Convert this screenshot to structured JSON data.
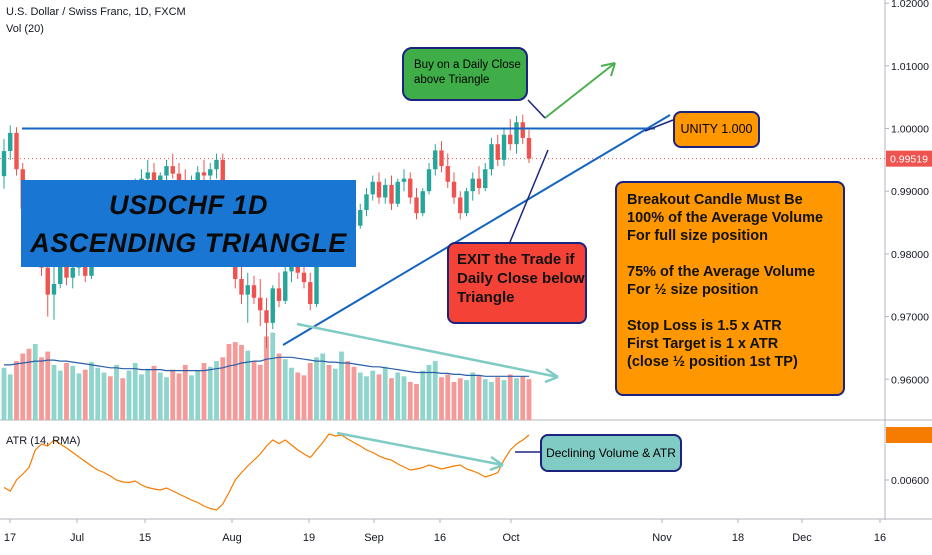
{
  "header": {
    "title": "U.S. Dollar / Swiss Franc, 1D, FXCM",
    "volume_label": "Vol (20)",
    "atr_label": "ATR (14, RMA)"
  },
  "notes": {
    "buy": [
      "Buy on a Daily Close",
      "above Triangle"
    ],
    "unity": "UNITY 1.000",
    "title": [
      "USDCHF 1D",
      "ASCENDING TRIANGLE"
    ],
    "exit": [
      "EXIT the Trade if",
      "Daily Close below",
      "Triangle"
    ],
    "rules": [
      [
        "Breakout Candle Must Be",
        "100% of the Average Volume",
        "For full size position"
      ],
      [
        "75% of the Average Volume",
        "For ½ size position"
      ],
      [
        "Stop Loss is 1.5 x ATR",
        "First Target is 1 x ATR",
        "(close ½ position 1st TP)"
      ]
    ],
    "declining": "Declining Volume & ATR"
  },
  "colors": {
    "up": "#26a69a",
    "down": "#ef5350",
    "vol_up": "#8fd5cc",
    "vol_down": "#f49a98",
    "trendline": "#1565c0",
    "vol_ma": "#2a5fa8",
    "atr": "#f57c00",
    "arrow_green": "#4caf50",
    "arrow_teal": "#80cbc4",
    "price_tag": "#ef5350"
  },
  "chart_data": {
    "type": "candlestick",
    "price_axis": {
      "ticks": [
        "1.02000",
        "1.01000",
        "1.00000",
        "0.99000",
        "0.98000",
        "0.97000",
        "0.96000"
      ],
      "last_price": "0.99519",
      "range": [
        0.9535,
        1.0205
      ]
    },
    "atr_axis": {
      "ticks": [
        "0.00700",
        "0.00600"
      ],
      "range": [
        0.0053,
        0.0072
      ]
    },
    "x_axis": {
      "ticks": [
        "17",
        "Jul",
        "15",
        "Aug",
        "19",
        "Sep",
        "16",
        "Oct",
        "Nov",
        "18",
        "Dec",
        "16"
      ]
    },
    "resistance": 1.0,
    "candles": [
      [
        0.9924,
        0.9983,
        0.9904,
        0.9964
      ],
      [
        0.9964,
        1.0005,
        0.995,
        0.9993
      ],
      [
        0.9993,
        1.0002,
        0.9925,
        0.9935
      ],
      [
        0.9935,
        0.9945,
        0.986,
        0.9872
      ],
      [
        0.9872,
        0.99,
        0.9805,
        0.982
      ],
      [
        0.982,
        0.987,
        0.979,
        0.9853
      ],
      [
        0.9853,
        0.988,
        0.9765,
        0.9778
      ],
      [
        0.9778,
        0.979,
        0.97,
        0.9735
      ],
      [
        0.9735,
        0.978,
        0.9695,
        0.9752
      ],
      [
        0.9752,
        0.98,
        0.9745,
        0.979
      ],
      [
        0.979,
        0.9805,
        0.975,
        0.9762
      ],
      [
        0.9762,
        0.98,
        0.9745,
        0.9778
      ],
      [
        0.9778,
        0.981,
        0.9765,
        0.9795
      ],
      [
        0.9795,
        0.98,
        0.9755,
        0.9765
      ],
      [
        0.9765,
        0.9825,
        0.976,
        0.982
      ],
      [
        0.982,
        0.9855,
        0.981,
        0.9845
      ],
      [
        0.9845,
        0.987,
        0.983,
        0.986
      ],
      [
        0.986,
        0.988,
        0.9845,
        0.985
      ],
      [
        0.985,
        0.989,
        0.984,
        0.9882
      ],
      [
        0.9882,
        0.99,
        0.986,
        0.987
      ],
      [
        0.987,
        0.9905,
        0.986,
        0.9895
      ],
      [
        0.9895,
        0.992,
        0.988,
        0.991
      ],
      [
        0.991,
        0.9935,
        0.9895,
        0.992
      ],
      [
        0.992,
        0.995,
        0.9905,
        0.993
      ],
      [
        0.993,
        0.9945,
        0.99,
        0.9912
      ],
      [
        0.9912,
        0.993,
        0.989,
        0.9925
      ],
      [
        0.9925,
        0.995,
        0.991,
        0.994
      ],
      [
        0.994,
        0.996,
        0.992,
        0.9928
      ],
      [
        0.9928,
        0.9945,
        0.9905,
        0.9915
      ],
      [
        0.9915,
        0.9935,
        0.989,
        0.99
      ],
      [
        0.99,
        0.9925,
        0.988,
        0.9915
      ],
      [
        0.9915,
        0.994,
        0.99,
        0.993
      ],
      [
        0.993,
        0.995,
        0.9915,
        0.9925
      ],
      [
        0.9925,
        0.9945,
        0.9905,
        0.9935
      ],
      [
        0.9935,
        0.996,
        0.992,
        0.995
      ],
      [
        0.995,
        0.996,
        0.99,
        0.991
      ],
      [
        0.991,
        0.9918,
        0.984,
        0.985
      ],
      [
        0.985,
        0.9855,
        0.9745,
        0.976
      ],
      [
        0.976,
        0.979,
        0.972,
        0.9735
      ],
      [
        0.9735,
        0.977,
        0.969,
        0.975
      ],
      [
        0.975,
        0.9765,
        0.972,
        0.973
      ],
      [
        0.973,
        0.976,
        0.9685,
        0.971
      ],
      [
        0.971,
        0.973,
        0.965,
        0.969
      ],
      [
        0.969,
        0.975,
        0.968,
        0.9745
      ],
      [
        0.9745,
        0.977,
        0.9715,
        0.9725
      ],
      [
        0.9725,
        0.978,
        0.972,
        0.9772
      ],
      [
        0.9772,
        0.98,
        0.9755,
        0.979
      ],
      [
        0.979,
        0.981,
        0.976,
        0.977
      ],
      [
        0.977,
        0.98,
        0.9745,
        0.9755
      ],
      [
        0.9755,
        0.977,
        0.971,
        0.972
      ],
      [
        0.972,
        0.98,
        0.9715,
        0.9795
      ],
      [
        0.9795,
        0.985,
        0.9785,
        0.984
      ],
      [
        0.984,
        0.986,
        0.981,
        0.982
      ],
      [
        0.982,
        0.988,
        0.9815,
        0.987
      ],
      [
        0.987,
        0.99,
        0.985,
        0.989
      ],
      [
        0.989,
        0.991,
        0.9865,
        0.9875
      ],
      [
        0.9875,
        0.989,
        0.9835,
        0.9845
      ],
      [
        0.9845,
        0.988,
        0.984,
        0.987
      ],
      [
        0.987,
        0.9905,
        0.986,
        0.9895
      ],
      [
        0.9895,
        0.9925,
        0.9885,
        0.9915
      ],
      [
        0.9915,
        0.993,
        0.988,
        0.989
      ],
      [
        0.989,
        0.992,
        0.988,
        0.991
      ],
      [
        0.991,
        0.9925,
        0.987,
        0.988
      ],
      [
        0.988,
        0.992,
        0.9875,
        0.9915
      ],
      [
        0.9915,
        0.9935,
        0.99,
        0.992
      ],
      [
        0.992,
        0.993,
        0.988,
        0.989
      ],
      [
        0.989,
        0.9905,
        0.9855,
        0.9865
      ],
      [
        0.9865,
        0.9905,
        0.986,
        0.99
      ],
      [
        0.99,
        0.9945,
        0.9895,
        0.9935
      ],
      [
        0.9935,
        0.9975,
        0.9925,
        0.9965
      ],
      [
        0.9965,
        0.998,
        0.993,
        0.994
      ],
      [
        0.994,
        0.996,
        0.9905,
        0.9915
      ],
      [
        0.9915,
        0.993,
        0.988,
        0.989
      ],
      [
        0.989,
        0.99,
        0.9855,
        0.9865
      ],
      [
        0.9865,
        0.9905,
        0.986,
        0.99
      ],
      [
        0.99,
        0.993,
        0.9885,
        0.992
      ],
      [
        0.992,
        0.994,
        0.9895,
        0.9905
      ],
      [
        0.9905,
        0.9945,
        0.99,
        0.9935
      ],
      [
        0.9935,
        0.9985,
        0.9925,
        0.9975
      ],
      [
        0.9975,
        0.999,
        0.994,
        0.995
      ],
      [
        0.995,
        1.0,
        0.994,
        0.999
      ],
      [
        0.999,
        1.0015,
        0.9965,
        0.9975
      ],
      [
        0.9975,
        1.002,
        0.996,
        1.001
      ],
      [
        1.001,
        1.0022,
        0.9975,
        0.9985
      ],
      [
        0.9985,
        0.9998,
        0.9945,
        0.9952
      ]
    ],
    "volume": [
      55,
      48,
      62,
      70,
      75,
      80,
      66,
      72,
      58,
      52,
      60,
      57,
      49,
      53,
      61,
      55,
      50,
      46,
      58,
      44,
      52,
      60,
      48,
      54,
      57,
      50,
      45,
      53,
      49,
      58,
      47,
      52,
      60,
      56,
      62,
      66,
      80,
      82,
      79,
      73,
      62,
      58,
      88,
      92,
      70,
      64,
      55,
      50,
      47,
      60,
      66,
      70,
      58,
      54,
      72,
      62,
      56,
      50,
      46,
      52,
      48,
      56,
      44,
      50,
      46,
      40,
      38,
      52,
      58,
      62,
      45,
      48,
      40,
      44,
      42,
      50,
      47,
      43,
      40,
      45,
      42,
      48,
      44,
      46,
      43
    ],
    "volume_ma": [
      58,
      58,
      59,
      60,
      61,
      62,
      62,
      63,
      63,
      62,
      62,
      61,
      60,
      59,
      58,
      57,
      56,
      55,
      55,
      54,
      54,
      54,
      53,
      53,
      53,
      53,
      52,
      52,
      52,
      52,
      52,
      52,
      52,
      53,
      54,
      55,
      57,
      58,
      60,
      61,
      62,
      62,
      64,
      65,
      66,
      66,
      66,
      65,
      64,
      63,
      62,
      62,
      61,
      61,
      60,
      60,
      59,
      58,
      57,
      56,
      56,
      55,
      54,
      53,
      52,
      51,
      50,
      50,
      50,
      50,
      49,
      49,
      48,
      48,
      47,
      47,
      47,
      46,
      46,
      46,
      46,
      46,
      46,
      46,
      46
    ],
    "atr": [
      0.00585,
      0.00578,
      0.006,
      0.00612,
      0.00625,
      0.0066,
      0.00672,
      0.00668,
      0.0068,
      0.00672,
      0.00664,
      0.00655,
      0.00646,
      0.00637,
      0.00628,
      0.0062,
      0.00615,
      0.00608,
      0.006,
      0.00596,
      0.00595,
      0.00598,
      0.0059,
      0.00585,
      0.00582,
      0.0058,
      0.00584,
      0.00578,
      0.00572,
      0.00566,
      0.0056,
      0.00555,
      0.00548,
      0.00543,
      0.0054,
      0.00552,
      0.00575,
      0.006,
      0.00615,
      0.00628,
      0.0064,
      0.00652,
      0.00668,
      0.0068,
      0.00673,
      0.0068,
      0.0067,
      0.0066,
      0.00652,
      0.00645,
      0.0066,
      0.00675,
      0.00692,
      0.00688,
      0.0069,
      0.00682,
      0.00675,
      0.00668,
      0.0066,
      0.00655,
      0.00648,
      0.00643,
      0.0064,
      0.00632,
      0.00626,
      0.0062,
      0.00622,
      0.00625,
      0.0063,
      0.00626,
      0.00622,
      0.00625,
      0.00628,
      0.0063,
      0.00622,
      0.00618,
      0.00613,
      0.00606,
      0.0061,
      0.00615,
      0.0064,
      0.0066,
      0.00672,
      0.0068,
      0.0069
    ]
  }
}
